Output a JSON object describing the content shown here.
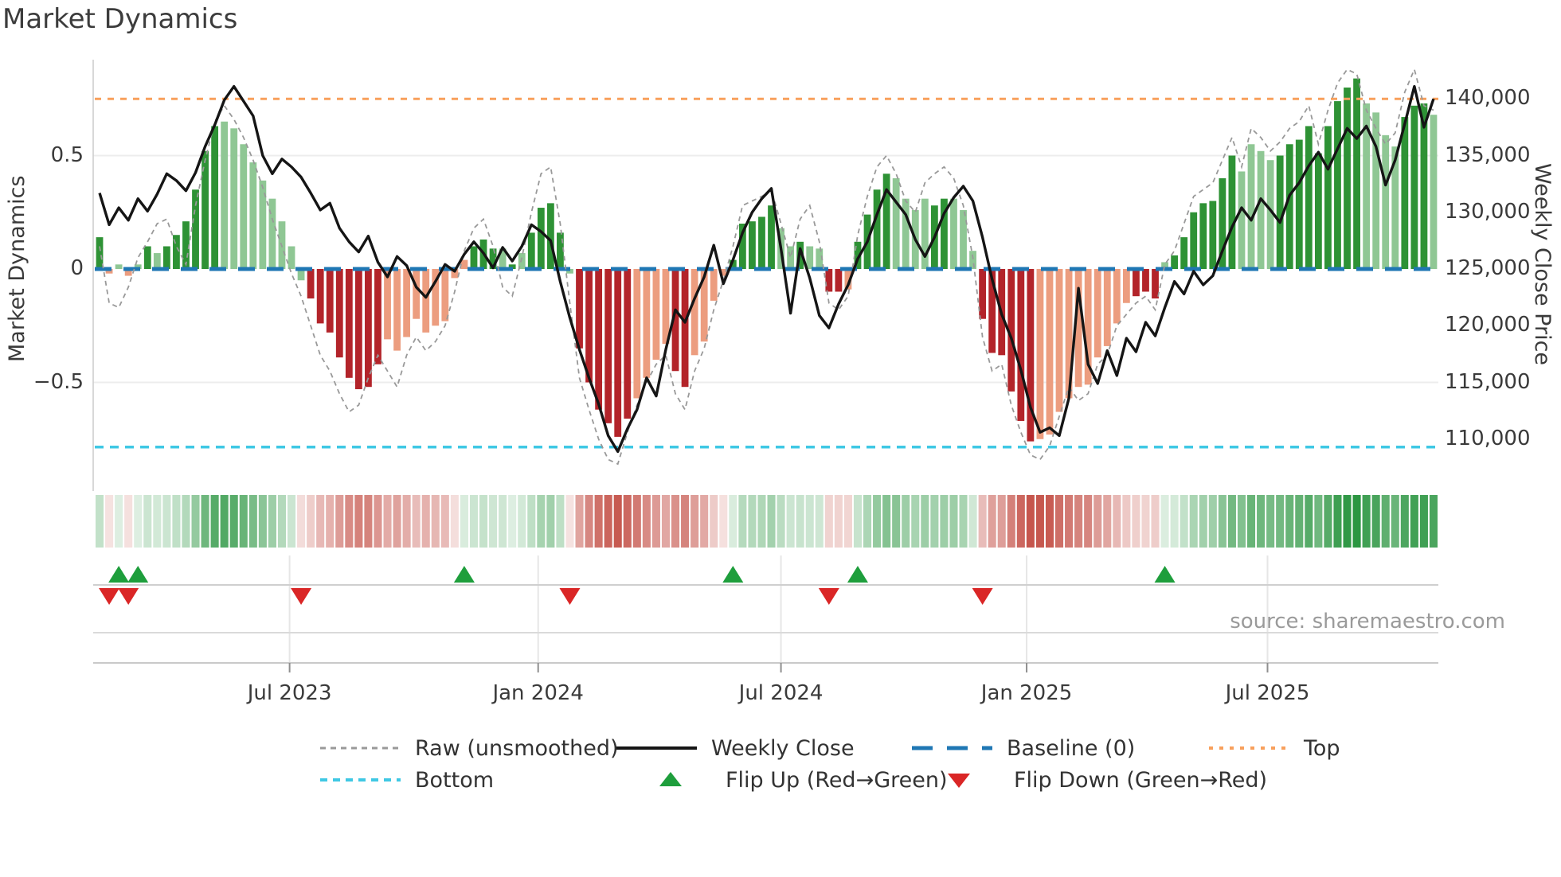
{
  "title": "Market Dynamics",
  "source_text": "source: sharemaestro.com",
  "legend": {
    "raw": "Raw (unsmoothed)",
    "weekly_close": "Weekly Close",
    "baseline": "Baseline (0)",
    "top": "Top",
    "bottom": "Bottom",
    "flip_up": "Flip Up (Red→Green)",
    "flip_down": "Flip Down (Green→Red)"
  },
  "colors": {
    "dark_green": "#2e9235",
    "light_green": "#8fc794",
    "dark_red": "#b3242a",
    "light_red": "#ec9d7f",
    "baseline_blue": "#1f77b4",
    "top_orange": "#f8a05c",
    "bottom_cyan": "#3fc8e4",
    "raw_gray": "#999999",
    "close_black": "#151515",
    "heat_green": "#2c9642",
    "heat_red": "#c24b41",
    "marker_green": "#1e9e3c",
    "marker_red": "#da2626",
    "grid": "#ededed",
    "spine": "#cccccc"
  },
  "chart_data": {
    "type": "bar+line combo: weekly oscillator bars with price overlay, heatmap strip and flip markers",
    "frequency": "weekly",
    "left_axis": {
      "label": "Market Dynamics",
      "ticks": [
        {
          "v": 0.5,
          "label": "0.5"
        },
        {
          "v": 0,
          "label": "0"
        },
        {
          "v": -0.5,
          "label": "−0.5"
        }
      ],
      "range": [
        -1.0,
        0.92
      ]
    },
    "right_axis": {
      "label": "Weekly Close Price",
      "ticks": [
        {
          "p": 140000,
          "label": "140,000"
        },
        {
          "p": 135000,
          "label": "135,000"
        },
        {
          "p": 130000,
          "label": "130,000"
        },
        {
          "p": 125000,
          "label": "125,000"
        },
        {
          "p": 120000,
          "label": "120,000"
        },
        {
          "p": 115000,
          "label": "115,000"
        },
        {
          "p": 110000,
          "label": "110,000"
        }
      ],
      "mapping": "price = 125000 + 20000 × oscillator"
    },
    "x_axis": {
      "unit": "week index",
      "span": "Feb 2023 – Nov 2025",
      "ticks": [
        {
          "week": 19.8,
          "label": "Jul 2023"
        },
        {
          "week": 45.7,
          "label": "Jan 2024"
        },
        {
          "week": 71.0,
          "label": "Jul 2024"
        },
        {
          "week": 96.6,
          "label": "Jan 2025"
        },
        {
          "week": 121.7,
          "label": "Jul 2025"
        }
      ]
    },
    "reference_lines": {
      "baseline": 0,
      "top": 0.75,
      "bottom": -0.785
    },
    "oscillator_bars": {
      "class_legend": {
        "G": "dark green (strengthening positive)",
        "g": "light green (fading positive)",
        "R": "dark red (strengthening negative)",
        "r": "light red (fading negative)"
      },
      "classes": "GrgrgGgGGGGGGgggggggttgRRRRRRRRrrrrrrrrrGGGgGgGGGGgRRRRRRRrrrrRRrrrrGGGGGggGggRRrGGGGggggGGgggRRRRRRrrrrrrrrrrRRRgGGGGGGGggggGGGGGGGGGggggGGGg",
      "values": [
        0.14,
        -0.02,
        0.02,
        -0.03,
        0.02,
        0.1,
        0.07,
        0.1,
        0.15,
        0.21,
        0.35,
        0.52,
        0.63,
        0.65,
        0.62,
        0.55,
        0.47,
        0.39,
        0.31,
        0.21,
        0.1,
        -0.05,
        -0.13,
        -0.24,
        -0.28,
        -0.39,
        -0.48,
        -0.53,
        -0.52,
        -0.42,
        -0.31,
        -0.36,
        -0.3,
        -0.22,
        -0.28,
        -0.25,
        -0.23,
        -0.04,
        0.04,
        0.1,
        0.13,
        0.09,
        0.09,
        0.02,
        0.07,
        0.16,
        0.27,
        0.29,
        0.16,
        -0.02,
        -0.35,
        -0.5,
        -0.62,
        -0.68,
        -0.74,
        -0.66,
        -0.57,
        -0.48,
        -0.4,
        -0.33,
        -0.45,
        -0.52,
        -0.38,
        -0.32,
        -0.14,
        -0.03,
        0.04,
        0.2,
        0.21,
        0.23,
        0.28,
        0.18,
        0.1,
        0.12,
        0.1,
        0.09,
        -0.1,
        -0.1,
        -0.09,
        0.12,
        0.24,
        0.35,
        0.42,
        0.4,
        0.31,
        0.26,
        0.31,
        0.28,
        0.31,
        0.31,
        0.26,
        0.08,
        -0.22,
        -0.37,
        -0.38,
        -0.54,
        -0.67,
        -0.76,
        -0.75,
        -0.73,
        -0.63,
        -0.57,
        -0.52,
        -0.51,
        -0.39,
        -0.34,
        -0.24,
        -0.15,
        -0.12,
        -0.1,
        -0.13,
        0.03,
        0.06,
        0.14,
        0.25,
        0.29,
        0.3,
        0.4,
        0.5,
        0.43,
        0.55,
        0.52,
        0.48,
        0.5,
        0.55,
        0.57,
        0.63,
        0.51,
        0.63,
        0.74,
        0.8,
        0.84,
        0.73,
        0.69,
        0.59,
        0.54,
        0.67,
        0.72,
        0.73,
        0.68
      ],
      "classes_fixed": "GrgrgGgGGGGGGgggggggggRRRRRRRRrrrrrrrrrGGGgGgGGGGgRRRRRRrrrrRRrrrrGGGGGggGggRRrGGGGggggGGgggRRRRRRrrrrrrrrrrRRRgGGGGGGGggggGGGGGGGGGggggGGGg"
    },
    "weekly_close": [
      131700,
      128900,
      130400,
      129300,
      131200,
      130100,
      131600,
      133400,
      132800,
      131900,
      133500,
      135800,
      137700,
      139900,
      141100,
      139800,
      138500,
      135000,
      133400,
      134700,
      134000,
      133100,
      131700,
      130200,
      130800,
      128600,
      127400,
      126500,
      127900,
      125600,
      124300,
      126100,
      125300,
      123400,
      122500,
      123900,
      125400,
      124800,
      126300,
      127400,
      126400,
      125100,
      126900,
      125700,
      127000,
      128900,
      128300,
      127500,
      123900,
      120700,
      117900,
      115400,
      113100,
      110300,
      108900,
      110900,
      112600,
      115400,
      113800,
      117900,
      121400,
      120300,
      122400,
      124300,
      127100,
      123700,
      125800,
      128200,
      130000,
      131200,
      132100,
      126800,
      121100,
      126800,
      124200,
      120900,
      119800,
      121900,
      123600,
      125900,
      127400,
      129800,
      132000,
      130900,
      129800,
      127600,
      126100,
      127800,
      129900,
      131300,
      132300,
      131000,
      127800,
      124100,
      121000,
      118900,
      116100,
      112800,
      110600,
      111000,
      110300,
      113600,
      123300,
      116600,
      114900,
      117800,
      115600,
      118900,
      117700,
      120300,
      119100,
      121600,
      123900,
      122800,
      124800,
      123600,
      124400,
      126600,
      128700,
      130400,
      129300,
      131200,
      130200,
      129100,
      131500,
      132600,
      134100,
      135300,
      133800,
      135600,
      137400,
      136500,
      137600,
      135800,
      132400,
      134600,
      137800,
      141100,
      137500,
      140000
    ],
    "raw_unsmoothed_osc": [
      0.1,
      -0.15,
      -0.17,
      -0.08,
      0.05,
      0.12,
      0.2,
      0.22,
      0.1,
      0.02,
      0.28,
      0.48,
      0.65,
      0.72,
      0.66,
      0.58,
      0.48,
      0.36,
      0.22,
      0.1,
      -0.02,
      -0.12,
      -0.25,
      -0.38,
      -0.45,
      -0.55,
      -0.63,
      -0.6,
      -0.48,
      -0.38,
      -0.45,
      -0.52,
      -0.38,
      -0.3,
      -0.36,
      -0.32,
      -0.25,
      -0.1,
      0.08,
      0.18,
      0.22,
      0.1,
      -0.08,
      -0.12,
      0.05,
      0.25,
      0.42,
      0.45,
      0.2,
      -0.15,
      -0.48,
      -0.62,
      -0.75,
      -0.84,
      -0.86,
      -0.72,
      -0.6,
      -0.5,
      -0.42,
      -0.38,
      -0.55,
      -0.62,
      -0.45,
      -0.35,
      -0.18,
      -0.05,
      0.1,
      0.28,
      0.3,
      0.32,
      0.35,
      0.2,
      0.05,
      0.22,
      0.28,
      0.12,
      -0.15,
      -0.18,
      -0.12,
      0.15,
      0.32,
      0.45,
      0.5,
      0.42,
      0.3,
      0.25,
      0.38,
      0.42,
      0.45,
      0.4,
      0.28,
      0.05,
      -0.3,
      -0.45,
      -0.42,
      -0.6,
      -0.72,
      -0.82,
      -0.84,
      -0.78,
      -0.65,
      -0.52,
      -0.58,
      -0.55,
      -0.42,
      -0.38,
      -0.25,
      -0.2,
      -0.15,
      -0.12,
      -0.18,
      0.02,
      0.08,
      0.2,
      0.32,
      0.35,
      0.38,
      0.48,
      0.58,
      0.45,
      0.62,
      0.58,
      0.52,
      0.56,
      0.62,
      0.65,
      0.72,
      0.55,
      0.7,
      0.82,
      0.88,
      0.86,
      0.7,
      0.62,
      0.55,
      0.6,
      0.78,
      0.88,
      0.72,
      0.7
    ],
    "flip_up_weeks": [
      2,
      4,
      38,
      66,
      79,
      111
    ],
    "flip_down_weeks": [
      1,
      3,
      21,
      49,
      76,
      92
    ],
    "heatmap": "one cell per week, green shades for positive oscillator, red shades for negative, intensity proportional to |value|"
  }
}
